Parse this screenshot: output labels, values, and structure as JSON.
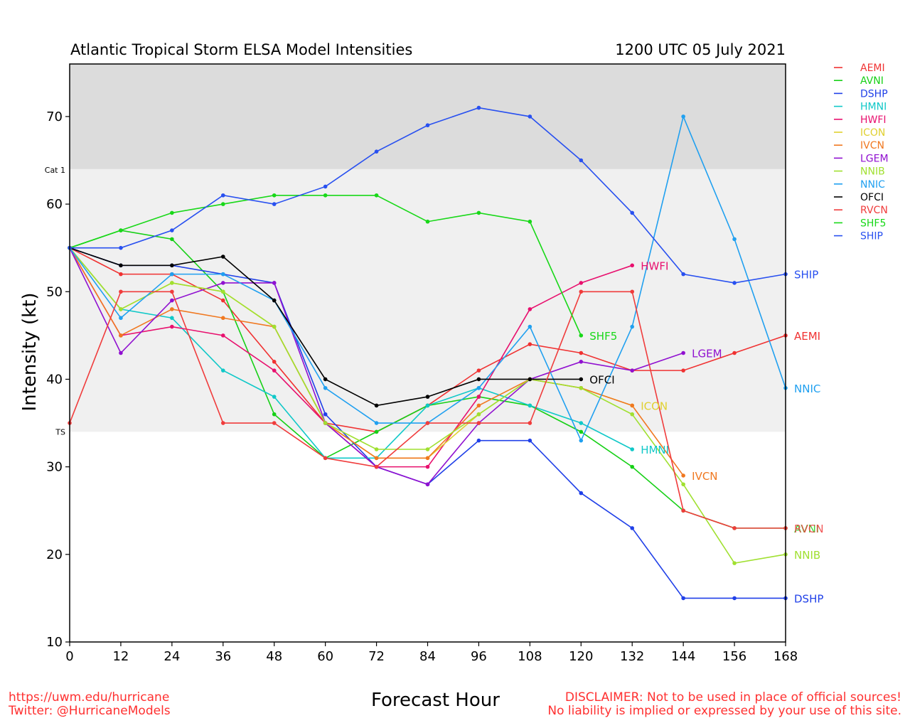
{
  "header": {
    "title": "Atlantic Tropical Storm ELSA Model Intensities",
    "datetime": "1200 UTC 05 July 2021"
  },
  "footer": {
    "website": "https://uwm.edu/hurricane",
    "twitter": "Twitter: @HurricaneModels",
    "disclaimer_line1": "DISCLAIMER: Not to be used in place of official sources!",
    "disclaimer_line2": "No liability is implied or expressed by your use of this site."
  },
  "chart_data": {
    "type": "line",
    "title": "Atlantic Tropical Storm ELSA Model Intensities",
    "xlabel": "Forecast Hour",
    "ylabel": "Intensity (kt)",
    "xlim": [
      0,
      168
    ],
    "ylim": [
      10,
      76
    ],
    "xticks": [
      0,
      12,
      24,
      36,
      48,
      60,
      72,
      84,
      96,
      108,
      120,
      132,
      144,
      156,
      168
    ],
    "yticks": [
      10,
      20,
      30,
      40,
      50,
      60,
      70
    ],
    "grid": false,
    "legend": "right outside",
    "bands": [
      {
        "label": "TS",
        "from": 34,
        "to": 64,
        "color": "#f0f0f0"
      },
      {
        "label": "Cat 1",
        "from": 64,
        "to": 76,
        "color": "#dcdcdc"
      }
    ],
    "series": [
      {
        "name": "AEMI",
        "color": "#f03232",
        "end_label": true,
        "points": [
          [
            0,
            55
          ],
          [
            12,
            52
          ],
          [
            24,
            52
          ],
          [
            36,
            49
          ],
          [
            48,
            42
          ],
          [
            60,
            35
          ],
          [
            72,
            34
          ],
          [
            84,
            37
          ],
          [
            96,
            41
          ],
          [
            108,
            44
          ],
          [
            120,
            43
          ],
          [
            132,
            41
          ],
          [
            144,
            41
          ],
          [
            156,
            43
          ],
          [
            168,
            45
          ]
        ]
      },
      {
        "name": "AVNI",
        "color": "#16d016",
        "end_label": false,
        "points": [
          [
            0,
            55
          ],
          [
            12,
            57
          ],
          [
            24,
            56
          ],
          [
            36,
            50
          ],
          [
            48,
            36
          ],
          [
            60,
            31
          ],
          [
            72,
            34
          ],
          [
            84,
            37
          ],
          [
            96,
            38
          ],
          [
            108,
            37
          ],
          [
            120,
            34
          ],
          [
            132,
            30
          ],
          [
            144,
            25
          ],
          [
            156,
            23
          ],
          [
            168,
            23
          ]
        ]
      },
      {
        "name": "DSHP",
        "color": "#2040e8",
        "end_label": true,
        "points": [
          [
            0,
            55
          ],
          [
            12,
            53
          ],
          [
            24,
            53
          ],
          [
            36,
            52
          ],
          [
            48,
            51
          ],
          [
            60,
            36
          ],
          [
            72,
            30
          ],
          [
            84,
            28
          ],
          [
            96,
            33
          ],
          [
            108,
            33
          ],
          [
            120,
            27
          ],
          [
            132,
            23
          ],
          [
            144,
            15
          ],
          [
            156,
            15
          ],
          [
            168,
            15
          ]
        ]
      },
      {
        "name": "HMNI",
        "color": "#10c8c8",
        "end_label": true,
        "points": [
          [
            0,
            55
          ],
          [
            12,
            48
          ],
          [
            24,
            47
          ],
          [
            36,
            41
          ],
          [
            48,
            38
          ],
          [
            60,
            31
          ],
          [
            72,
            31
          ],
          [
            84,
            37
          ],
          [
            96,
            39
          ],
          [
            108,
            37
          ],
          [
            120,
            35
          ],
          [
            132,
            32
          ]
        ]
      },
      {
        "name": "HWFI",
        "color": "#e8106e",
        "end_label": true,
        "points": [
          [
            0,
            55
          ],
          [
            12,
            45
          ],
          [
            24,
            46
          ],
          [
            36,
            45
          ],
          [
            48,
            41
          ],
          [
            60,
            35
          ],
          [
            72,
            30
          ],
          [
            84,
            30
          ],
          [
            96,
            38
          ],
          [
            108,
            48
          ],
          [
            120,
            51
          ],
          [
            132,
            53
          ]
        ]
      },
      {
        "name": "ICON",
        "color": "#e0d030",
        "end_label": true,
        "points": [
          [
            0,
            55
          ],
          [
            12,
            48
          ],
          [
            24,
            51
          ],
          [
            36,
            50
          ],
          [
            48,
            46
          ],
          [
            60,
            35
          ],
          [
            72,
            31
          ],
          [
            84,
            31
          ],
          [
            96,
            36
          ],
          [
            108,
            40
          ],
          [
            120,
            39
          ],
          [
            132,
            37
          ]
        ]
      },
      {
        "name": "IVCN",
        "color": "#f07820",
        "end_label": true,
        "points": [
          [
            0,
            55
          ],
          [
            12,
            45
          ],
          [
            24,
            48
          ],
          [
            36,
            47
          ],
          [
            48,
            46
          ],
          [
            60,
            35
          ],
          [
            72,
            31
          ],
          [
            84,
            31
          ],
          [
            96,
            37
          ],
          [
            108,
            40
          ],
          [
            120,
            39
          ],
          [
            132,
            37
          ],
          [
            144,
            29
          ]
        ]
      },
      {
        "name": "LGEM",
        "color": "#9010d0",
        "end_label": true,
        "points": [
          [
            0,
            55
          ],
          [
            12,
            43
          ],
          [
            24,
            49
          ],
          [
            36,
            51
          ],
          [
            48,
            51
          ],
          [
            60,
            35
          ],
          [
            72,
            30
          ],
          [
            84,
            28
          ],
          [
            96,
            35
          ],
          [
            108,
            40
          ],
          [
            120,
            42
          ],
          [
            132,
            41
          ],
          [
            144,
            43
          ]
        ]
      },
      {
        "name": "NNIB",
        "color": "#a0e030",
        "end_label": true,
        "points": [
          [
            0,
            55
          ],
          [
            12,
            48
          ],
          [
            24,
            51
          ],
          [
            36,
            50
          ],
          [
            48,
            46
          ],
          [
            60,
            35
          ],
          [
            72,
            32
          ],
          [
            84,
            32
          ],
          [
            96,
            36
          ],
          [
            108,
            40
          ],
          [
            120,
            39
          ],
          [
            132,
            36
          ],
          [
            144,
            28
          ],
          [
            156,
            19
          ],
          [
            168,
            20
          ]
        ]
      },
      {
        "name": "NNIC",
        "color": "#20a0f0",
        "end_label": true,
        "points": [
          [
            0,
            55
          ],
          [
            12,
            47
          ],
          [
            24,
            52
          ],
          [
            36,
            52
          ],
          [
            48,
            49
          ],
          [
            60,
            39
          ],
          [
            72,
            35
          ],
          [
            84,
            35
          ],
          [
            96,
            39
          ],
          [
            108,
            46
          ],
          [
            120,
            33
          ],
          [
            132,
            46
          ],
          [
            144,
            70
          ],
          [
            156,
            56
          ],
          [
            168,
            39
          ]
        ]
      },
      {
        "name": "OFCI",
        "color": "#000000",
        "end_label": true,
        "points": [
          [
            0,
            55
          ],
          [
            12,
            53
          ],
          [
            24,
            53
          ],
          [
            36,
            54
          ],
          [
            48,
            49
          ],
          [
            60,
            40
          ],
          [
            72,
            37
          ],
          [
            84,
            38
          ],
          [
            96,
            40
          ],
          [
            108,
            40
          ],
          [
            120,
            40
          ]
        ]
      },
      {
        "name": "RVCN",
        "color": "#f03c3c",
        "end_label": false,
        "points": [
          [
            0,
            35
          ],
          [
            12,
            50
          ],
          [
            24,
            50
          ],
          [
            36,
            35
          ],
          [
            48,
            35
          ],
          [
            60,
            31
          ],
          [
            72,
            30
          ],
          [
            84,
            35
          ],
          [
            96,
            35
          ],
          [
            108,
            35
          ],
          [
            120,
            50
          ],
          [
            132,
            50
          ],
          [
            144,
            25
          ],
          [
            156,
            23
          ],
          [
            168,
            23
          ]
        ]
      },
      {
        "name": "SHF5",
        "color": "#18d818",
        "end_label": true,
        "points": [
          [
            0,
            55
          ],
          [
            12,
            57
          ],
          [
            24,
            59
          ],
          [
            36,
            60
          ],
          [
            48,
            61
          ],
          [
            60,
            61
          ],
          [
            72,
            61
          ],
          [
            84,
            58
          ],
          [
            96,
            59
          ],
          [
            108,
            58
          ],
          [
            120,
            45
          ]
        ]
      },
      {
        "name": "SHIP",
        "color": "#2850f0",
        "end_label": true,
        "points": [
          [
            0,
            55
          ],
          [
            12,
            55
          ],
          [
            24,
            57
          ],
          [
            36,
            61
          ],
          [
            48,
            60
          ],
          [
            60,
            62
          ],
          [
            72,
            66
          ],
          [
            84,
            69
          ],
          [
            96,
            71
          ],
          [
            108,
            70
          ],
          [
            120,
            65
          ],
          [
            132,
            59
          ],
          [
            144,
            52
          ],
          [
            156,
            51
          ],
          [
            168,
            52
          ]
        ]
      }
    ],
    "overlap_labels": [
      {
        "text": "AVNI",
        "color": "#16d016",
        "x": 168,
        "y": 23
      },
      {
        "text": "RVCN",
        "color": "#f03c3c",
        "x": 168,
        "y": 23
      }
    ]
  }
}
